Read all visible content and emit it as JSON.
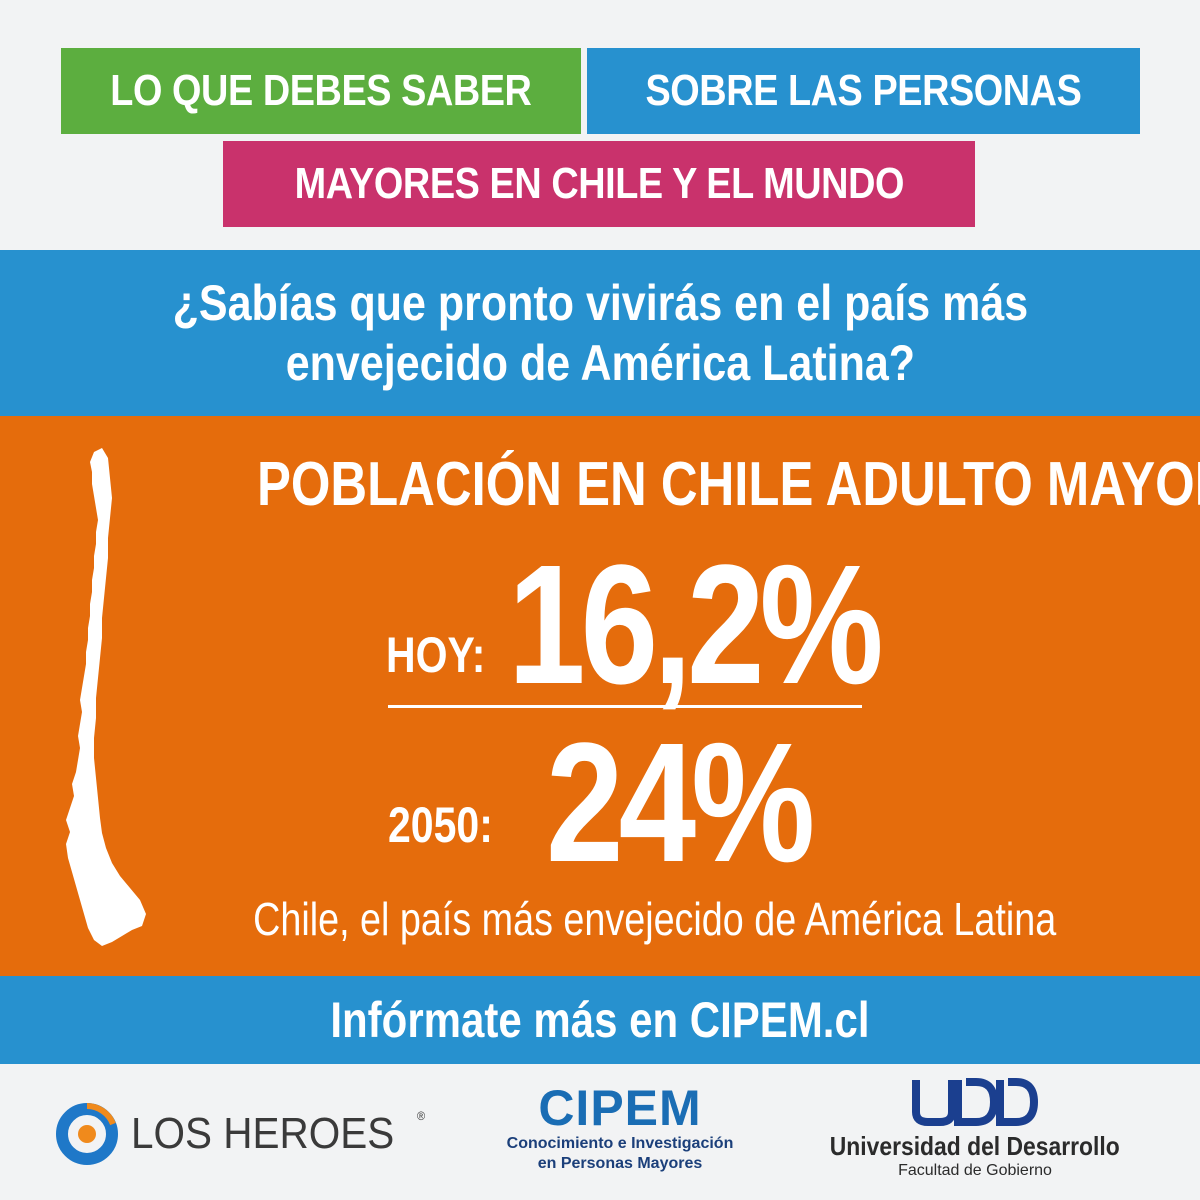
{
  "header": {
    "tag1": "LO QUE DEBES SABER",
    "tag2": "SOBRE LAS PERSONAS",
    "tag3": "MAYORES EN CHILE Y EL MUNDO",
    "colors": {
      "green": "#5cae3f",
      "blue": "#2791cf",
      "magenta": "#c9326c"
    }
  },
  "question": {
    "line1": "¿Sabías que pronto vivirás en el país más",
    "line2": "envejecido de América Latina?"
  },
  "stats": {
    "title": "POBLACIÓN EN CHILE ADULTO MAYOR",
    "today_label": "HOY:",
    "today_value": "16,2%",
    "future_label": "2050:",
    "future_value": "24%",
    "footnote": "Chile, el país más envejecido de América Latina",
    "background": "#e56c0c",
    "map_icon": "chile-map-icon"
  },
  "cta": {
    "text": "Infórmate más en CIPEM.cl"
  },
  "logos": {
    "los_heroes": {
      "icon": "los-heroes-logo-icon",
      "name": "LOS HEROES",
      "reg": "®"
    },
    "cipem": {
      "name": "CIPEM",
      "tagline1": "Conocimiento e Investigación",
      "tagline2": "en Personas Mayores"
    },
    "udd": {
      "icon": "udd-logo-icon",
      "name": "Universidad del Desarrollo",
      "sub": "Facultad de Gobierno"
    }
  }
}
